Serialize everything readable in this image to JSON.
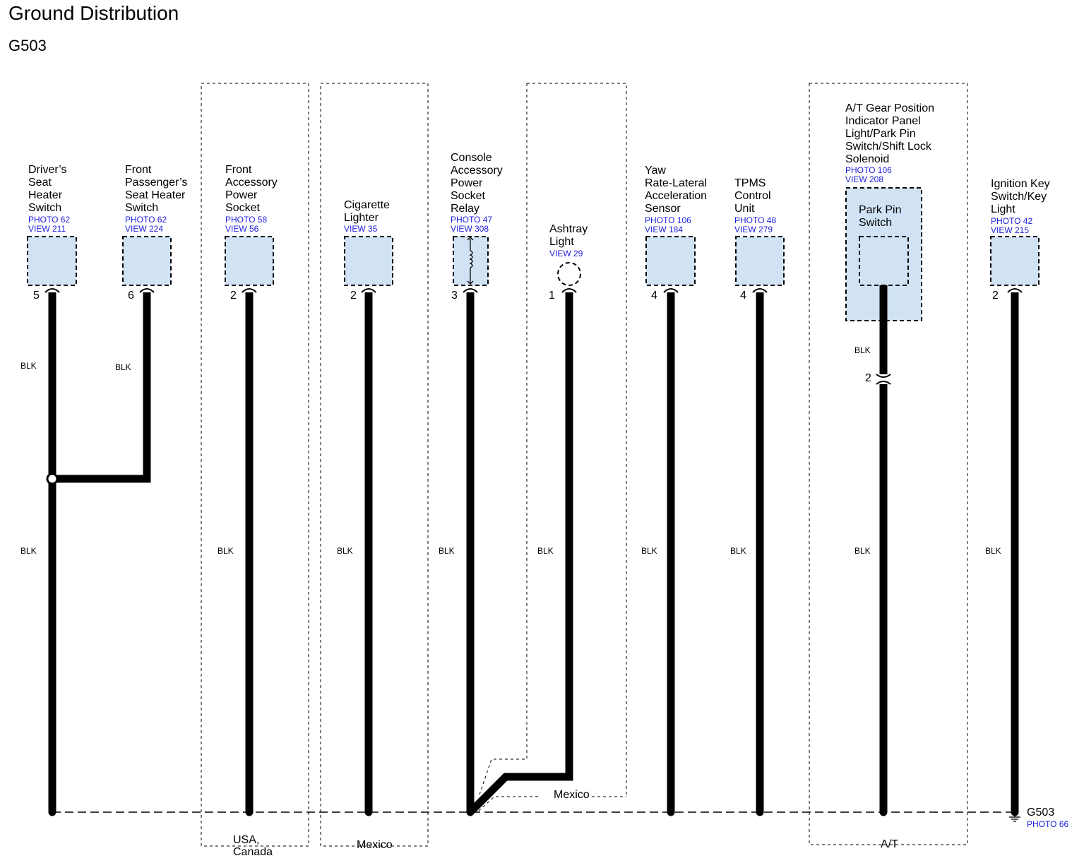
{
  "title": "Ground Distribution",
  "ground_id": "G503",
  "wire_color": "BLK",
  "colors": {
    "component_fill": "#d0e2f4",
    "reference_text": "#1e1edc",
    "wire": "#000000"
  },
  "components": [
    {
      "name": "Driver’s\nSeat\nHeater\nSwitch",
      "photo": "PHOTO 62",
      "view": "VIEW 211",
      "pin": "5"
    },
    {
      "name": "Front\nPassenger’s\nSeat Heater\nSwitch",
      "photo": "PHOTO 62",
      "view": "VIEW 224",
      "pin": "6"
    },
    {
      "name": "Front\nAccessory\nPower\nSocket",
      "photo": "PHOTO 58",
      "view": "VIEW 56",
      "pin": "2"
    },
    {
      "name": "Cigarette\nLighter",
      "photo": "",
      "view": "VIEW 35",
      "pin": "2"
    },
    {
      "name": "Console\nAccessory\nPower\nSocket\nRelay",
      "photo": "PHOTO 47",
      "view": "VIEW 308",
      "pin": "3"
    },
    {
      "name": "Ashtray\nLight",
      "photo": "",
      "view": "VIEW 29",
      "pin": "1"
    },
    {
      "name": "Yaw\nRate-Lateral\nAcceleration\nSensor",
      "photo": "PHOTO 106",
      "view": "VIEW 184",
      "pin": "4"
    },
    {
      "name": "TPMS\nControl\nUnit",
      "photo": "PHOTO 48",
      "view": "VIEW 279",
      "pin": "4"
    },
    {
      "name": "A/T Gear Position\nIndicator Panel\nLight/Park Pin\nSwitch/Shift Lock\nSolenoid",
      "photo": "PHOTO 106",
      "view": "VIEW 208",
      "pin": "2",
      "inner_name": "Park Pin\nSwitch"
    },
    {
      "name": "Ignition Key\nSwitch/Key\nLight",
      "photo": "PHOTO 42",
      "view": "VIEW 215",
      "pin": "2"
    }
  ],
  "zones": [
    {
      "label": "USA,\nCanada"
    },
    {
      "label": "Mexico"
    },
    {
      "label": "Mexico"
    },
    {
      "label": "A/T"
    }
  ],
  "ground": {
    "label": "G503",
    "photo": "PHOTO 66"
  }
}
